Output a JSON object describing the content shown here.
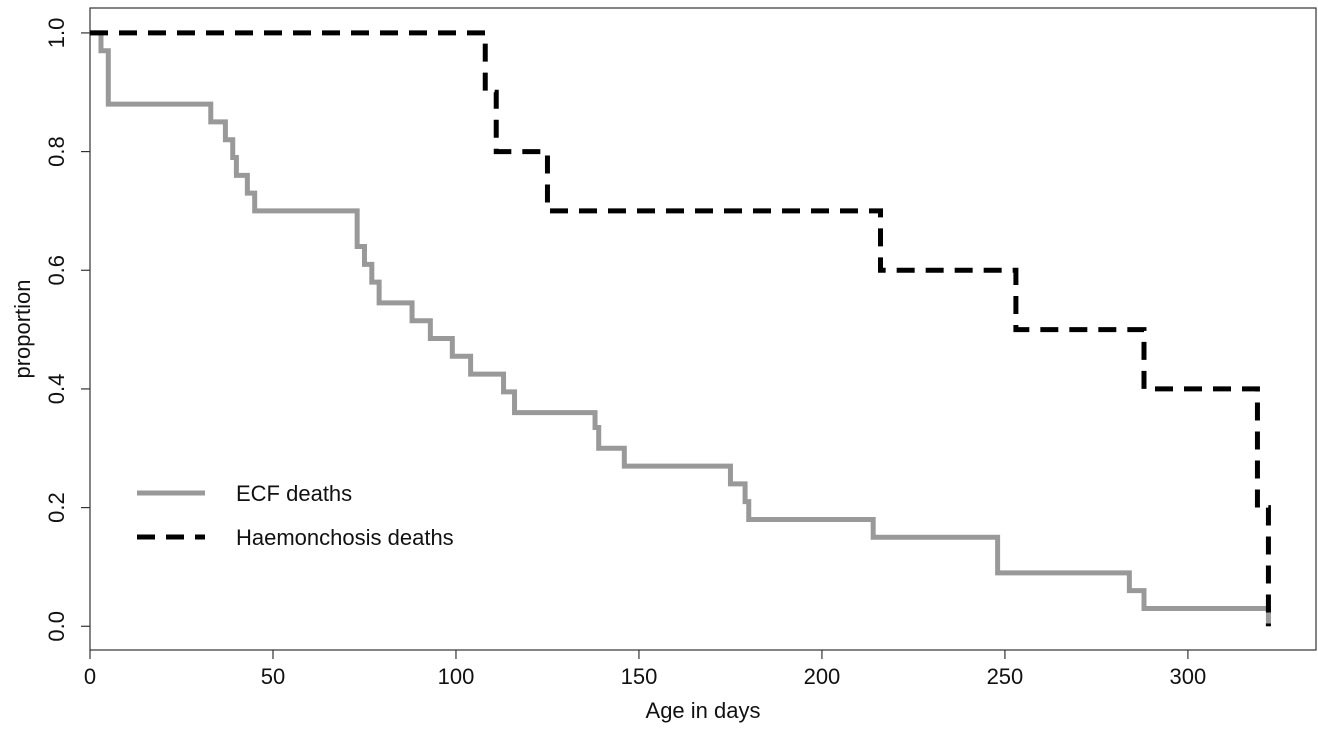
{
  "chart_data": {
    "type": "step",
    "xlabel": "Age in days",
    "ylabel": "proportion",
    "xlim": [
      0,
      335
    ],
    "ylim": [
      -0.04,
      1.042
    ],
    "xticks": [
      0,
      50,
      100,
      150,
      200,
      250,
      300
    ],
    "yticks": [
      {
        "value": 0,
        "label": "0.0"
      },
      0.2,
      0.4,
      0.6,
      0.8,
      {
        "value": 1,
        "label": "1.0"
      }
    ],
    "legend": "bottom-left",
    "series": [
      {
        "name": "ECF deaths",
        "color": "#999999",
        "dash": "solid",
        "x": [
          0,
          3,
          5,
          33,
          37,
          39,
          40,
          43,
          45,
          73,
          75,
          77,
          79,
          88,
          93,
          99,
          104,
          113,
          116,
          138,
          139,
          146,
          175,
          179,
          180,
          214,
          248,
          284,
          288,
          322
        ],
        "values": [
          1.0,
          0.97,
          0.88,
          0.85,
          0.82,
          0.79,
          0.76,
          0.73,
          0.7,
          0.64,
          0.61,
          0.58,
          0.545,
          0.515,
          0.485,
          0.455,
          0.425,
          0.395,
          0.36,
          0.335,
          0.3,
          0.27,
          0.24,
          0.21,
          0.18,
          0.15,
          0.09,
          0.06,
          0.03,
          0.0
        ]
      },
      {
        "name": "Haemonchosis deaths",
        "color": "#000000",
        "dash": "dashed",
        "x": [
          0,
          108,
          111,
          125,
          216,
          253,
          288,
          319,
          322
        ],
        "values": [
          1.0,
          0.9,
          0.8,
          0.7,
          0.6,
          0.5,
          0.4,
          0.2,
          0.0
        ]
      }
    ]
  }
}
